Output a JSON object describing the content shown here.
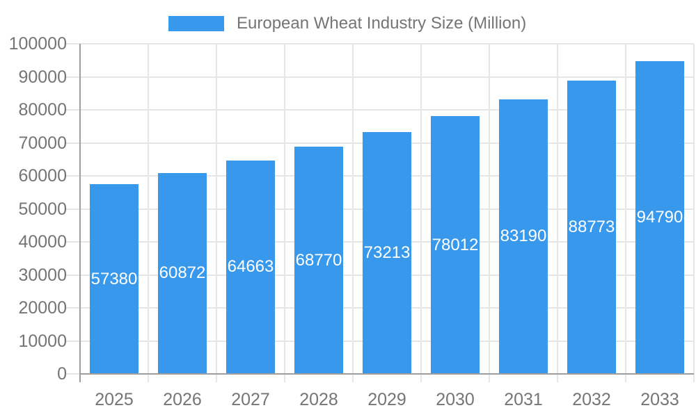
{
  "chart_data": {
    "type": "bar",
    "title": "European Wheat Industry Size (Million)",
    "legend": {
      "position": "top",
      "label": "European Wheat Industry Size (Million)"
    },
    "categories": [
      "2025",
      "2026",
      "2027",
      "2028",
      "2029",
      "2030",
      "2031",
      "2032",
      "2033"
    ],
    "series": [
      {
        "name": "European Wheat Industry Size (Million)",
        "values": [
          57380,
          60872,
          64663,
          68770,
          73213,
          78012,
          83190,
          88773,
          94790
        ]
      }
    ],
    "value_labels_inside_bars": true,
    "xlabel": "",
    "ylabel": "",
    "ylim": [
      0,
      100000
    ],
    "ytick_step": 10000,
    "ytick_labels": [
      "0",
      "10000",
      "20000",
      "30000",
      "40000",
      "50000",
      "60000",
      "70000",
      "80000",
      "90000",
      "100000"
    ],
    "grid": true,
    "colors": {
      "bar": "#3899EC",
      "axis_line": "#9e9e9e",
      "gridline": "#e6e6e6",
      "tick_label": "#757575",
      "legend_text": "#757575",
      "value_label": "#ffffff",
      "background": "#ffffff"
    }
  }
}
